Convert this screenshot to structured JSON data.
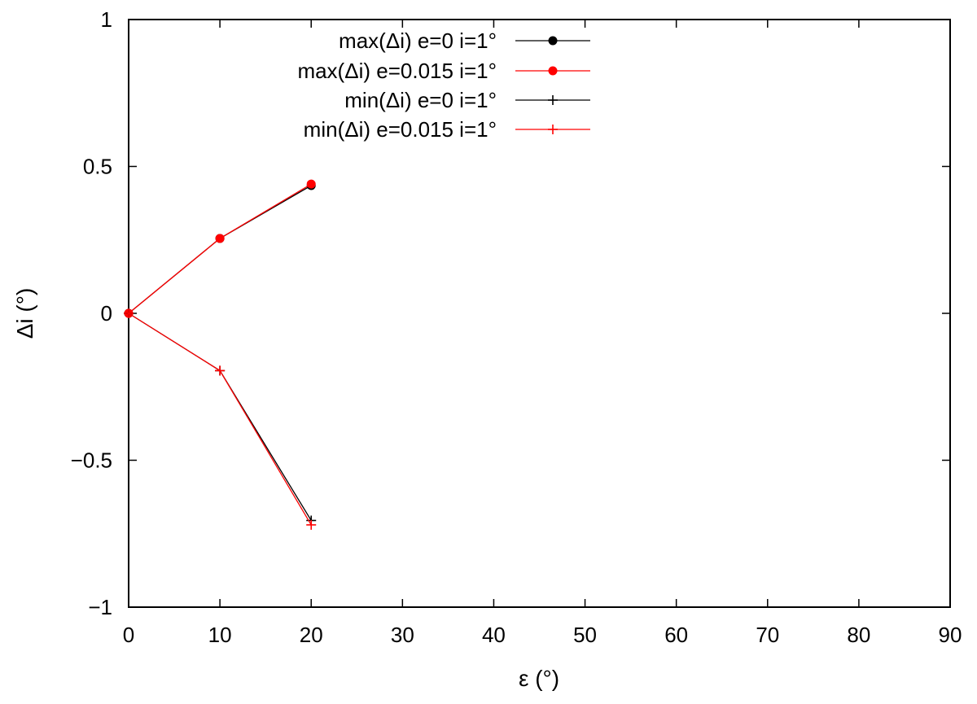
{
  "chart_data": {
    "type": "line",
    "xlabel": "ε (°)",
    "ylabel": "Δi (°)",
    "xlim": [
      0,
      90
    ],
    "ylim": [
      -1,
      1
    ],
    "xticks": [
      "0",
      "10",
      "20",
      "30",
      "40",
      "50",
      "60",
      "70",
      "80",
      "90"
    ],
    "yticks": [
      "1",
      "0.5",
      "0",
      "−0.5",
      "−1"
    ],
    "grid": false,
    "legend_position": "top",
    "series": [
      {
        "name": "max(Δi) e=0 i=1°",
        "color": "#000000",
        "marker": "filled-circle",
        "x": [
          0,
          10,
          20
        ],
        "y": [
          0,
          0.255,
          0.435
        ]
      },
      {
        "name": "max(Δi) e=0.015 i=1°",
        "color": "#ff0000",
        "marker": "filled-circle",
        "x": [
          0,
          10,
          20
        ],
        "y": [
          0,
          0.255,
          0.44
        ]
      },
      {
        "name": "min(Δi) e=0 i=1°",
        "color": "#000000",
        "marker": "plus",
        "x": [
          0,
          10,
          20
        ],
        "y": [
          0,
          -0.195,
          -0.705
        ]
      },
      {
        "name": "min(Δi) e=0.015 i=1°",
        "color": "#ff0000",
        "marker": "plus",
        "x": [
          0,
          10,
          20
        ],
        "y": [
          0,
          -0.195,
          -0.72
        ]
      }
    ]
  }
}
